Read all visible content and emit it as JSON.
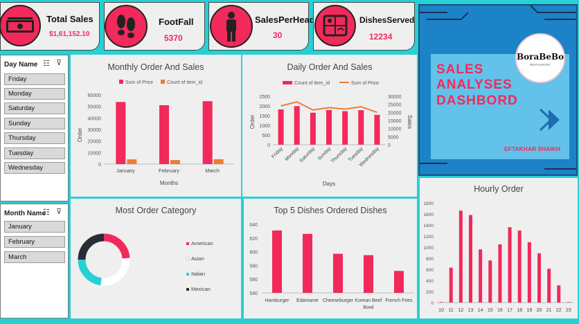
{
  "kpis": [
    {
      "title": "Total Sales",
      "value": "$1,61,152.10",
      "icon": "cash-icon"
    },
    {
      "title": "FootFall",
      "value": "5370",
      "icon": "footprints-icon"
    },
    {
      "title": "SalesPerHead",
      "value": "30",
      "icon": "person-icon"
    },
    {
      "title": "DishesServed",
      "value": "12234",
      "icon": "food-tray-icon"
    }
  ],
  "slicers": {
    "day": {
      "title": "Day Name",
      "items": [
        "Friday",
        "Monday",
        "Saturday",
        "Sunday",
        "Thursday",
        "Tuesday",
        "Wednesday"
      ]
    },
    "month": {
      "title": "Month Name",
      "items": [
        "January",
        "February",
        "March"
      ]
    }
  },
  "banner": {
    "line1": "SALES",
    "line2": "ANALYSES",
    "line3": "DASHBORD",
    "author": "EFTAKHAR SHAIKH",
    "logo_text": "BoraBeBo",
    "logo_sub": "RESTAURANT"
  },
  "colors": {
    "pink": "#f2295b",
    "orange": "#ed7d31",
    "teal": "#26d0d4",
    "dark": "#2b2d36"
  },
  "chart_data": [
    {
      "id": "monthly",
      "type": "bar",
      "title": "Monthly Order And Sales",
      "categories": [
        "January",
        "February",
        "March"
      ],
      "series": [
        {
          "name": "Sum of Price",
          "values": [
            53800,
            51000,
            54500
          ]
        },
        {
          "name": "Count of item_id",
          "values": [
            4100,
            3500,
            4200
          ]
        }
      ],
      "xlabel": "Months",
      "ylabel": "Order",
      "ylim": [
        0,
        60000
      ],
      "yticks": [
        "0",
        "10000",
        "20000",
        "30000",
        "40000",
        "50000",
        "60000"
      ]
    },
    {
      "id": "daily",
      "type": "bar+line",
      "title": "Daily Order And Sales",
      "categories": [
        "Friday",
        "Monday",
        "Saturday",
        "Sunday",
        "Thursday",
        "Tuesday",
        "Wednesday"
      ],
      "series": [
        {
          "name": "Count of item_id",
          "axis": "left",
          "values": [
            1820,
            1990,
            1650,
            1790,
            1730,
            1780,
            1540
          ]
        },
        {
          "name": "Sum of Price",
          "axis": "right",
          "values": [
            24000,
            26500,
            21500,
            23000,
            22000,
            23500,
            20000
          ]
        }
      ],
      "xlabel": "Days",
      "ylabel": "Order",
      "y2label": "Sales",
      "ylim": [
        0,
        2500
      ],
      "y2lim": [
        0,
        30000
      ],
      "yticks": [
        "0",
        "500",
        "1000",
        "1500",
        "2000",
        "2500"
      ],
      "y2ticks": [
        "0",
        "5000",
        "10000",
        "15000",
        "20000",
        "25000",
        "30000"
      ]
    },
    {
      "id": "category",
      "type": "pie",
      "title": "Most Order Category",
      "labels": [
        "American",
        "Asian",
        "Italian",
        "Mexican"
      ],
      "values": [
        24,
        28,
        23,
        25
      ]
    },
    {
      "id": "top5",
      "type": "bar",
      "title": "Top 5 Dishes Ordered Dishes",
      "categories": [
        "Hamburger",
        "Edamame",
        "Cheeseburger",
        "Korean Beef Bowl",
        "French Fries"
      ],
      "values": [
        631,
        626,
        597,
        595,
        572
      ],
      "ylim": [
        540,
        640
      ],
      "yticks": [
        "540",
        "560",
        "580",
        "600",
        "620",
        "640"
      ]
    },
    {
      "id": "hourly",
      "type": "bar",
      "title": "Hourly Order",
      "categories": [
        "10",
        "11",
        "12",
        "13",
        "14",
        "15",
        "16",
        "17",
        "18",
        "19",
        "20",
        "21",
        "22",
        "23"
      ],
      "values": [
        10,
        630,
        1660,
        1580,
        960,
        760,
        1050,
        1360,
        1300,
        1090,
        890,
        610,
        310,
        10
      ],
      "ylim": [
        0,
        1800
      ],
      "yticks": [
        "0",
        "200",
        "400",
        "600",
        "800",
        "1000",
        "1200",
        "1400",
        "1600",
        "1800"
      ]
    }
  ]
}
